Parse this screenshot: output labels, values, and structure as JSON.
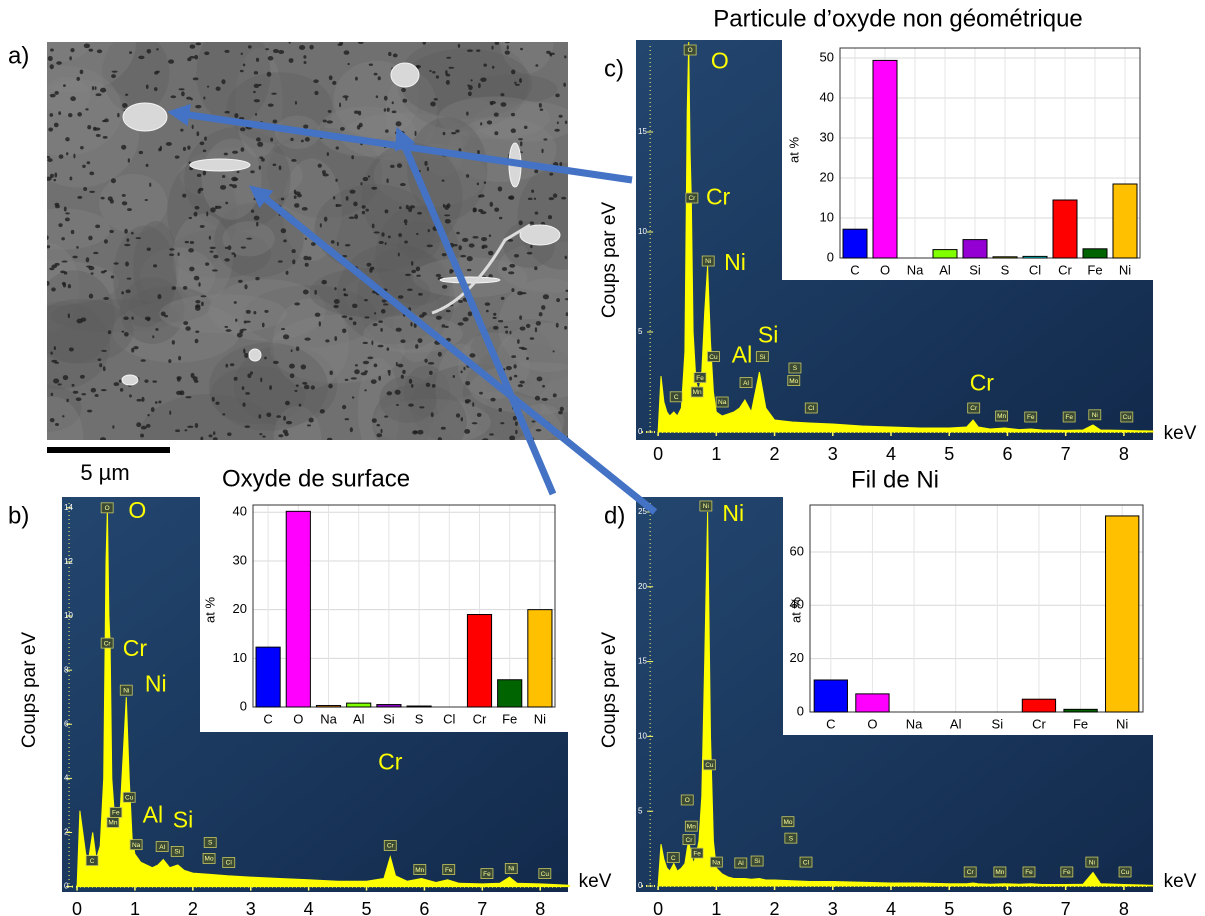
{
  "figure": {
    "panel_a": "a)",
    "scale_bar": "5 µm"
  },
  "chart_data": [
    {
      "type": "area",
      "panel": "b)",
      "title": "Oxyde de surface",
      "xlabel": "keV",
      "ylabel": "Coups par eV",
      "color": "#ffff00",
      "x": [
        0,
        0.05,
        0.1,
        0.15,
        0.2,
        0.27,
        0.33,
        0.4,
        0.46,
        0.5,
        0.525,
        0.55,
        0.57,
        0.6,
        0.65,
        0.7,
        0.75,
        0.8,
        0.85,
        0.9,
        0.95,
        1.0,
        1.1,
        1.2,
        1.3,
        1.4,
        1.49,
        1.6,
        1.74,
        1.85,
        2.0,
        2.3,
        2.6,
        3.0,
        3.5,
        4.0,
        4.5,
        5.0,
        5.3,
        5.41,
        5.5,
        5.7,
        5.95,
        6.2,
        6.4,
        6.6,
        7.0,
        7.3,
        7.47,
        7.6,
        8.0,
        8.5
      ],
      "values": [
        0,
        2.8,
        2.0,
        1.2,
        1.0,
        2.0,
        1.0,
        1.5,
        4.0,
        12,
        14,
        10,
        9,
        4,
        2.5,
        2.2,
        3.0,
        5.0,
        7.0,
        4.0,
        1.8,
        1.2,
        0.9,
        0.8,
        0.7,
        0.8,
        1.0,
        0.7,
        0.8,
        0.6,
        0.5,
        0.45,
        0.4,
        0.35,
        0.3,
        0.25,
        0.2,
        0.2,
        0.3,
        1.1,
        0.4,
        0.2,
        0.3,
        0.15,
        0.25,
        0.12,
        0.1,
        0.12,
        0.35,
        0.12,
        0.1,
        0.05
      ],
      "xlim": [
        -0.26,
        8.48
      ],
      "ylim": [
        -0.2,
        14.4
      ],
      "xticks": [
        0,
        1,
        2,
        3,
        4,
        5,
        6,
        7,
        8
      ],
      "yticks": [
        0,
        2,
        4,
        6,
        8,
        10,
        12,
        14
      ],
      "annotations": [
        {
          "text": "O",
          "x": 1.04,
          "y": 13.85
        },
        {
          "text": "Cr",
          "x": 1.0,
          "y": 8.75
        },
        {
          "text": "Ni",
          "x": 1.36,
          "y": 7.44
        },
        {
          "text": "Al",
          "x": 1.31,
          "y": 2.6
        },
        {
          "text": "Si",
          "x": 1.83,
          "y": 2.4
        },
        {
          "text": "Cr",
          "x": 5.41,
          "y": 4.55
        }
      ],
      "peak_markers": [
        {
          "text": "O",
          "x": 0.52,
          "y": 14
        },
        {
          "text": "Cr",
          "x": 0.52,
          "y": 9
        },
        {
          "text": "Ni",
          "x": 0.85,
          "y": 7.26
        },
        {
          "text": "Cu",
          "x": 0.9,
          "y": 3.3
        },
        {
          "text": "Fe",
          "x": 0.67,
          "y": 2.74
        },
        {
          "text": "Mn",
          "x": 0.62,
          "y": 2.37
        },
        {
          "text": "C",
          "x": 0.26,
          "y": 0.96
        },
        {
          "text": "Na",
          "x": 1.02,
          "y": 1.55
        },
        {
          "text": "Al",
          "x": 1.47,
          "y": 1.48
        },
        {
          "text": "Si",
          "x": 1.73,
          "y": 1.3
        },
        {
          "text": "S",
          "x": 2.3,
          "y": 1.63
        },
        {
          "text": "Mo",
          "x": 2.28,
          "y": 1.04
        },
        {
          "text": "Cl",
          "x": 2.62,
          "y": 0.89
        },
        {
          "text": "Cr",
          "x": 5.41,
          "y": 1.52
        },
        {
          "text": "Mn",
          "x": 5.92,
          "y": 0.63
        },
        {
          "text": "Fe",
          "x": 6.42,
          "y": 0.63
        },
        {
          "text": "Fe",
          "x": 7.08,
          "y": 0.48
        },
        {
          "text": "Ni",
          "x": 7.5,
          "y": 0.67
        },
        {
          "text": "Cu",
          "x": 8.08,
          "y": 0.48
        }
      ]
    },
    {
      "type": "bar",
      "ylabel": "at %",
      "categories": [
        "C",
        "O",
        "Na",
        "Al",
        "Si",
        "S",
        "Cl",
        "Cr",
        "Fe",
        "Ni"
      ],
      "values": [
        12.3,
        40.2,
        0.3,
        0.8,
        0.5,
        0.2,
        0,
        19,
        5.6,
        20
      ],
      "colors": [
        "#0000ff",
        "#ff00ff",
        "#ff8c00",
        "#7fff00",
        "#9400d3",
        "#ffff00",
        "#00ffff",
        "#ff0000",
        "#006400",
        "#ffc000"
      ],
      "ylim": [
        0,
        41.5
      ],
      "yticks": [
        0,
        10,
        20,
        30,
        40
      ],
      "grid": true
    },
    {
      "type": "area",
      "panel": "c)",
      "title": "Particule d’oxyde non géométrique",
      "xlabel": "keV",
      "ylabel": "Coups par eV",
      "color": "#ffff00",
      "x": [
        0,
        0.05,
        0.1,
        0.15,
        0.2,
        0.27,
        0.33,
        0.4,
        0.46,
        0.5,
        0.525,
        0.55,
        0.57,
        0.6,
        0.65,
        0.7,
        0.75,
        0.8,
        0.85,
        0.9,
        0.95,
        1.0,
        1.1,
        1.2,
        1.3,
        1.4,
        1.49,
        1.6,
        1.74,
        1.85,
        2.0,
        2.3,
        2.6,
        3.0,
        3.5,
        4.0,
        4.5,
        5.0,
        5.3,
        5.41,
        5.5,
        5.7,
        5.95,
        6.2,
        6.4,
        6.6,
        7.0,
        7.3,
        7.47,
        7.6,
        8.0,
        8.5
      ],
      "values": [
        0,
        2.8,
        1.5,
        1.0,
        0.8,
        1.0,
        0.8,
        1.2,
        4,
        16,
        19.5,
        14,
        11.7,
        5,
        2.5,
        2.0,
        3.0,
        6.0,
        8.3,
        4.5,
        2.0,
        1.0,
        0.8,
        0.9,
        1.0,
        1.2,
        1.6,
        1.0,
        3.0,
        1.2,
        0.6,
        0.5,
        0.45,
        0.4,
        0.3,
        0.25,
        0.2,
        0.2,
        0.25,
        0.6,
        0.25,
        0.15,
        0.2,
        0.12,
        0.15,
        0.1,
        0.08,
        0.1,
        0.35,
        0.1,
        0.08,
        0.05
      ],
      "xlim": [
        -0.38,
        8.5
      ],
      "ylim": [
        -0.4,
        19.6
      ],
      "xticks": [
        0,
        1,
        2,
        3,
        4,
        5,
        6,
        7,
        8
      ],
      "yticks": [
        0,
        5,
        10,
        15
      ],
      "annotations": [
        {
          "text": "O",
          "x": 1.06,
          "y": 18.47
        },
        {
          "text": "Cr",
          "x": 1.03,
          "y": 11.68
        },
        {
          "text": "Ni",
          "x": 1.32,
          "y": 8.4
        },
        {
          "text": "Al",
          "x": 1.44,
          "y": 3.77
        },
        {
          "text": "Si",
          "x": 1.89,
          "y": 4.78
        },
        {
          "text": "Cr",
          "x": 5.56,
          "y": 2.37
        }
      ],
      "peak_markers": [
        {
          "text": "O",
          "x": 0.55,
          "y": 19.1
        },
        {
          "text": "Cr",
          "x": 0.58,
          "y": 11.7
        },
        {
          "text": "Ni",
          "x": 0.86,
          "y": 8.55
        },
        {
          "text": "Cu",
          "x": 0.95,
          "y": 3.77
        },
        {
          "text": "Fe",
          "x": 0.72,
          "y": 2.72
        },
        {
          "text": "Mn",
          "x": 0.67,
          "y": 2.0
        },
        {
          "text": "C",
          "x": 0.31,
          "y": 1.76
        },
        {
          "text": "Na",
          "x": 1.1,
          "y": 1.5
        },
        {
          "text": "Al",
          "x": 1.51,
          "y": 2.47
        },
        {
          "text": "Si",
          "x": 1.79,
          "y": 3.77
        },
        {
          "text": "S",
          "x": 2.35,
          "y": 3.2
        },
        {
          "text": "Mo",
          "x": 2.33,
          "y": 2.57
        },
        {
          "text": "Cl",
          "x": 2.63,
          "y": 1.2
        },
        {
          "text": "Cr",
          "x": 5.42,
          "y": 1.2
        },
        {
          "text": "Mn",
          "x": 5.9,
          "y": 0.8
        },
        {
          "text": "Fe",
          "x": 6.4,
          "y": 0.75
        },
        {
          "text": "Fe",
          "x": 7.06,
          "y": 0.75
        },
        {
          "text": "Ni",
          "x": 7.5,
          "y": 0.86
        },
        {
          "text": "Cu",
          "x": 8.05,
          "y": 0.75
        }
      ]
    },
    {
      "type": "bar",
      "ylabel": "at %",
      "categories": [
        "C",
        "O",
        "Na",
        "Al",
        "Si",
        "S",
        "Cl",
        "Cr",
        "Fe",
        "Ni"
      ],
      "values": [
        7.2,
        49.4,
        0,
        2.1,
        4.6,
        0.3,
        0.4,
        14.5,
        2.3,
        18.5
      ],
      "colors": [
        "#0000ff",
        "#ff00ff",
        "#ff8c00",
        "#7fff00",
        "#9400d3",
        "#ffff00",
        "#00ffff",
        "#ff0000",
        "#006400",
        "#ffc000"
      ],
      "ylim": [
        0,
        52.5
      ],
      "yticks": [
        0,
        10,
        20,
        30,
        40,
        50
      ],
      "grid": true
    },
    {
      "type": "area",
      "panel": "d)",
      "title": "Fil de Ni",
      "xlabel": "keV",
      "ylabel": "Coups par eV",
      "color": "#ffff00",
      "x": [
        0,
        0.05,
        0.1,
        0.15,
        0.2,
        0.27,
        0.33,
        0.4,
        0.46,
        0.5,
        0.525,
        0.55,
        0.57,
        0.6,
        0.65,
        0.7,
        0.75,
        0.8,
        0.85,
        0.9,
        0.95,
        1.0,
        1.1,
        1.2,
        1.3,
        1.4,
        1.49,
        1.6,
        1.74,
        1.85,
        2.0,
        2.3,
        2.6,
        3.0,
        3.5,
        4.0,
        4.5,
        5.0,
        5.3,
        5.41,
        5.5,
        5.7,
        5.95,
        6.2,
        6.4,
        6.6,
        7.0,
        7.3,
        7.47,
        7.6,
        8.0,
        8.5
      ],
      "values": [
        0,
        2.8,
        1.8,
        1.2,
        1.0,
        1.5,
        1.0,
        1.2,
        1.5,
        2.5,
        3.0,
        2.5,
        2.2,
        1.5,
        2.0,
        3.0,
        6.0,
        15,
        25,
        10,
        3.0,
        1.2,
        0.8,
        0.6,
        0.5,
        0.5,
        0.5,
        0.45,
        0.5,
        0.4,
        0.4,
        0.35,
        0.3,
        0.3,
        0.25,
        0.2,
        0.2,
        0.15,
        0.15,
        0.2,
        0.15,
        0.12,
        0.15,
        0.12,
        0.15,
        0.1,
        0.1,
        0.12,
        0.9,
        0.15,
        0.1,
        0.05
      ],
      "xlim": [
        -0.38,
        8.5
      ],
      "ylim": [
        -0.4,
        26
      ],
      "xticks": [
        0,
        1,
        2,
        3,
        4,
        5,
        6,
        7,
        8
      ],
      "yticks": [
        0,
        5,
        10,
        15,
        20,
        25
      ],
      "annotations": [
        {
          "text": "Ni",
          "x": 1.29,
          "y": 24.8
        }
      ],
      "peak_markers": [
        {
          "text": "Ni",
          "x": 0.82,
          "y": 25.4
        },
        {
          "text": "Cu",
          "x": 0.88,
          "y": 8.1
        },
        {
          "text": "O",
          "x": 0.5,
          "y": 5.75
        },
        {
          "text": "Mn",
          "x": 0.57,
          "y": 4.0
        },
        {
          "text": "Cr",
          "x": 0.53,
          "y": 3.1
        },
        {
          "text": "Fe",
          "x": 0.67,
          "y": 2.2
        },
        {
          "text": "C",
          "x": 0.26,
          "y": 1.9
        },
        {
          "text": "Na",
          "x": 1.0,
          "y": 1.6
        },
        {
          "text": "Al",
          "x": 1.42,
          "y": 1.54
        },
        {
          "text": "Si",
          "x": 1.7,
          "y": 1.67
        },
        {
          "text": "Mo",
          "x": 2.23,
          "y": 4.3
        },
        {
          "text": "S",
          "x": 2.28,
          "y": 3.2
        },
        {
          "text": "Cl",
          "x": 2.54,
          "y": 1.6
        },
        {
          "text": "Cr",
          "x": 5.36,
          "y": 0.94
        },
        {
          "text": "Mn",
          "x": 5.87,
          "y": 0.94
        },
        {
          "text": "Fe",
          "x": 6.37,
          "y": 0.94
        },
        {
          "text": "Fe",
          "x": 7.02,
          "y": 0.94
        },
        {
          "text": "Ni",
          "x": 7.45,
          "y": 1.6
        },
        {
          "text": "Cu",
          "x": 8.02,
          "y": 0.94
        }
      ]
    },
    {
      "type": "bar",
      "ylabel": "at %",
      "categories": [
        "C",
        "O",
        "Na",
        "Al",
        "Si",
        "Cr",
        "Fe",
        "Ni"
      ],
      "values": [
        12,
        6.8,
        0,
        0,
        0,
        4.8,
        1,
        73.5
      ],
      "colors": [
        "#0000ff",
        "#ff00ff",
        "#ff8c00",
        "#7fff00",
        "#9400d3",
        "#ff0000",
        "#006400",
        "#ffc000"
      ],
      "ylim": [
        0,
        77.6
      ],
      "yticks": [
        0,
        20,
        40,
        60
      ],
      "grid": true
    }
  ]
}
